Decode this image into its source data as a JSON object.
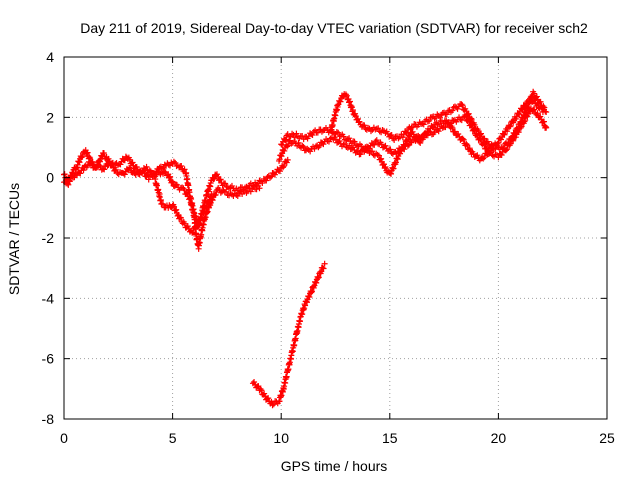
{
  "chart_data": {
    "type": "scatter",
    "title": "Day 211 of 2019, Sidereal Day-to-day VTEC variation (SDTVAR) for receiver sch2",
    "xlabel": "GPS time / hours",
    "ylabel": "SDTVAR / TECUs",
    "xlim": [
      0,
      25
    ],
    "ylim": [
      -8,
      4
    ],
    "xticks": [
      0,
      5,
      10,
      15,
      20,
      25
    ],
    "yticks": [
      -8,
      -6,
      -4,
      -2,
      0,
      2,
      4
    ],
    "grid": true,
    "legend": "none",
    "marker": "plus",
    "series_color": "#ff0000",
    "series": [
      {
        "points": [
          [
            0.0,
            0.1
          ],
          [
            0.2,
            -0.2
          ],
          [
            0.4,
            0.2
          ],
          [
            0.6,
            0.4
          ],
          [
            0.8,
            0.7
          ],
          [
            1.0,
            0.9
          ],
          [
            1.2,
            0.6
          ],
          [
            1.4,
            0.3
          ],
          [
            1.6,
            0.5
          ],
          [
            1.8,
            0.8
          ],
          [
            2.0,
            0.6
          ],
          [
            2.3,
            0.4
          ],
          [
            2.6,
            0.5
          ],
          [
            2.9,
            0.7
          ],
          [
            3.2,
            0.4
          ],
          [
            3.5,
            0.2
          ],
          [
            3.8,
            0.3
          ],
          [
            4.1,
            0.1
          ],
          [
            4.4,
            0.3
          ],
          [
            4.7,
            0.4
          ],
          [
            5.0,
            0.5
          ],
          [
            5.3,
            0.4
          ],
          [
            5.6,
            0.2
          ],
          [
            5.8,
            -0.6
          ],
          [
            6.0,
            -1.2
          ],
          [
            6.2,
            -1.6
          ],
          [
            6.4,
            -1.0
          ],
          [
            6.6,
            -0.5
          ],
          [
            6.8,
            -0.1
          ],
          [
            7.0,
            0.1
          ],
          [
            7.3,
            -0.2
          ],
          [
            7.6,
            -0.3
          ],
          [
            8.0,
            -0.4
          ],
          [
            8.4,
            -0.3
          ],
          [
            8.8,
            -0.2
          ],
          [
            9.2,
            -0.1
          ],
          [
            9.6,
            0.1
          ],
          [
            10.0,
            0.3
          ],
          [
            10.3,
            0.6
          ]
        ]
      },
      {
        "points": [
          [
            0.0,
            -0.2
          ],
          [
            0.3,
            0.0
          ],
          [
            0.6,
            0.1
          ],
          [
            0.9,
            0.3
          ],
          [
            1.2,
            0.5
          ],
          [
            1.5,
            0.4
          ],
          [
            1.8,
            0.3
          ],
          [
            2.1,
            0.5
          ],
          [
            2.4,
            0.2
          ],
          [
            2.7,
            0.1
          ],
          [
            3.0,
            0.3
          ],
          [
            3.3,
            0.1
          ],
          [
            3.6,
            0.2
          ],
          [
            3.9,
            0.0
          ],
          [
            4.2,
            0.1
          ],
          [
            4.5,
            0.2
          ],
          [
            4.8,
            0.1
          ],
          [
            5.0,
            -0.2
          ],
          [
            5.2,
            -0.3
          ],
          [
            5.5,
            -0.4
          ],
          [
            5.8,
            -0.7
          ],
          [
            6.0,
            -1.3
          ],
          [
            6.1,
            -2.0
          ],
          [
            6.2,
            -2.3
          ],
          [
            6.3,
            -1.9
          ],
          [
            6.5,
            -1.3
          ],
          [
            6.7,
            -0.9
          ],
          [
            6.9,
            -0.6
          ],
          [
            7.1,
            -0.4
          ],
          [
            7.4,
            -0.5
          ],
          [
            7.8,
            -0.6
          ],
          [
            8.2,
            -0.5
          ],
          [
            8.6,
            -0.4
          ],
          [
            9.0,
            -0.3
          ]
        ]
      },
      {
        "points": [
          [
            4.2,
            -0.1
          ],
          [
            4.4,
            -0.6
          ],
          [
            4.5,
            -0.9
          ],
          [
            4.8,
            -1.0
          ],
          [
            5.0,
            -0.9
          ],
          [
            5.3,
            -1.3
          ],
          [
            5.6,
            -1.6
          ],
          [
            5.9,
            -1.8
          ],
          [
            6.2,
            -1.5
          ],
          [
            6.5,
            -1.0
          ],
          [
            6.8,
            -0.6
          ]
        ]
      },
      {
        "points": [
          [
            10.0,
            1.1
          ],
          [
            10.3,
            1.4
          ],
          [
            10.7,
            1.4
          ],
          [
            11.1,
            1.3
          ],
          [
            11.5,
            1.5
          ],
          [
            12.0,
            1.6
          ],
          [
            12.5,
            1.5
          ],
          [
            13.0,
            1.3
          ],
          [
            13.5,
            1.1
          ],
          [
            14.0,
            0.9
          ],
          [
            14.5,
            0.7
          ],
          [
            14.8,
            0.3
          ],
          [
            15.0,
            0.1
          ],
          [
            15.2,
            0.4
          ],
          [
            15.5,
            0.9
          ],
          [
            16.0,
            1.2
          ],
          [
            16.5,
            1.4
          ],
          [
            17.0,
            1.5
          ],
          [
            17.5,
            1.7
          ],
          [
            18.0,
            1.9
          ],
          [
            18.5,
            2.0
          ],
          [
            19.0,
            1.4
          ],
          [
            19.3,
            1.1
          ],
          [
            19.6,
            0.8
          ],
          [
            20.0,
            0.7
          ],
          [
            20.4,
            1.0
          ],
          [
            20.8,
            1.4
          ],
          [
            21.2,
            1.9
          ],
          [
            21.5,
            2.3
          ],
          [
            21.8,
            2.1
          ],
          [
            22.1,
            1.8
          ],
          [
            22.2,
            1.6
          ]
        ]
      },
      {
        "points": [
          [
            9.9,
            0.6
          ],
          [
            10.1,
            0.9
          ],
          [
            10.4,
            1.2
          ],
          [
            10.8,
            1.1
          ],
          [
            11.2,
            0.9
          ],
          [
            11.6,
            1.0
          ],
          [
            12.0,
            1.2
          ],
          [
            12.4,
            1.3
          ],
          [
            12.8,
            1.1
          ],
          [
            13.2,
            1.0
          ],
          [
            13.6,
            0.8
          ],
          [
            14.0,
            1.0
          ],
          [
            14.4,
            1.2
          ],
          [
            14.8,
            1.0
          ],
          [
            15.2,
            0.8
          ],
          [
            15.6,
            1.0
          ],
          [
            16.0,
            1.5
          ],
          [
            16.4,
            1.2
          ],
          [
            16.8,
            1.6
          ],
          [
            17.2,
            1.8
          ],
          [
            17.6,
            1.9
          ],
          [
            18.0,
            1.5
          ],
          [
            18.4,
            1.2
          ],
          [
            18.8,
            0.8
          ],
          [
            19.2,
            0.6
          ],
          [
            19.6,
            0.9
          ],
          [
            20.0,
            1.2
          ],
          [
            20.4,
            1.6
          ],
          [
            20.8,
            2.0
          ],
          [
            21.2,
            2.4
          ],
          [
            21.5,
            2.6
          ],
          [
            21.8,
            2.4
          ],
          [
            22.1,
            2.2
          ]
        ]
      },
      {
        "points": [
          [
            12.3,
            1.6
          ],
          [
            12.6,
            2.4
          ],
          [
            12.9,
            2.8
          ],
          [
            13.1,
            2.6
          ],
          [
            13.3,
            2.2
          ],
          [
            13.6,
            1.8
          ],
          [
            14.0,
            1.6
          ],
          [
            14.4,
            1.6
          ],
          [
            14.8,
            1.5
          ],
          [
            15.2,
            1.3
          ],
          [
            15.6,
            1.4
          ],
          [
            16.0,
            1.7
          ],
          [
            16.5,
            1.8
          ],
          [
            17.0,
            2.0
          ],
          [
            17.5,
            2.1
          ],
          [
            18.0,
            2.3
          ],
          [
            18.3,
            2.4
          ],
          [
            18.6,
            2.1
          ],
          [
            19.0,
            1.6
          ],
          [
            19.4,
            1.2
          ],
          [
            19.8,
            1.0
          ],
          [
            20.2,
            1.0
          ],
          [
            20.6,
            1.3
          ],
          [
            21.0,
            1.8
          ],
          [
            21.3,
            2.3
          ],
          [
            21.6,
            2.8
          ],
          [
            21.9,
            2.5
          ],
          [
            22.2,
            2.2
          ]
        ]
      },
      {
        "points": [
          [
            8.7,
            -6.8
          ],
          [
            9.0,
            -7.0
          ],
          [
            9.3,
            -7.3
          ],
          [
            9.6,
            -7.5
          ],
          [
            9.9,
            -7.4
          ],
          [
            10.1,
            -7.0
          ],
          [
            10.3,
            -6.4
          ],
          [
            10.5,
            -5.8
          ],
          [
            10.7,
            -5.2
          ],
          [
            10.9,
            -4.6
          ],
          [
            11.1,
            -4.2
          ],
          [
            11.3,
            -3.9
          ],
          [
            11.5,
            -3.6
          ],
          [
            11.7,
            -3.3
          ],
          [
            11.9,
            -3.0
          ],
          [
            12.0,
            -2.9
          ]
        ]
      }
    ]
  }
}
